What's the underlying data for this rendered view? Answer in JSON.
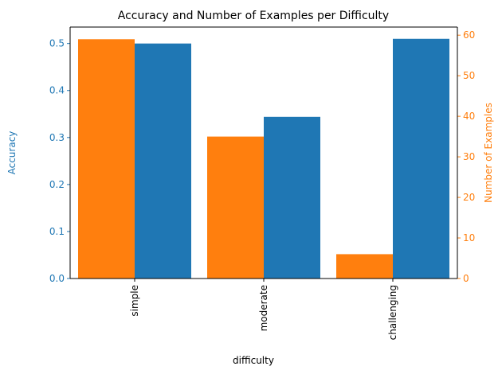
{
  "chart_data": {
    "type": "bar",
    "title": "Accuracy and Number of Examples per Difficulty",
    "xlabel": "difficulty",
    "categories": [
      "simple",
      "moderate",
      "challenging"
    ],
    "left_axis": {
      "label": "Accuracy",
      "color": "#1f77b4",
      "ylim": [
        0,
        0.535
      ],
      "ticks": [
        "0.0",
        "0.1",
        "0.2",
        "0.3",
        "0.4",
        "0.5"
      ]
    },
    "right_axis": {
      "label": "Number of Examples",
      "color": "#ff7f0e",
      "ylim": [
        0,
        62
      ],
      "ticks": [
        "0",
        "10",
        "20",
        "30",
        "40",
        "50",
        "60"
      ]
    },
    "series": [
      {
        "values": [
          0.5,
          0.344,
          0.51
        ],
        "axis": "left",
        "color": "#1f77b4"
      },
      {
        "values": [
          59,
          35,
          6
        ],
        "axis": "right",
        "color": "#ff7f0e"
      }
    ]
  }
}
